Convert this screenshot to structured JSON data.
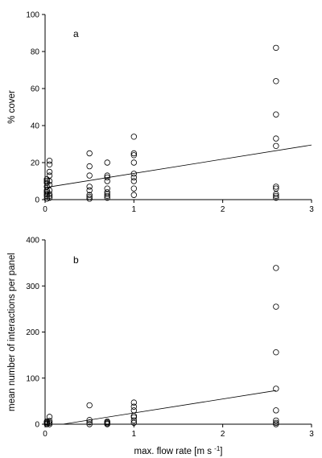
{
  "chart_data": [
    {
      "type": "scatter",
      "panel_label": "a",
      "xlabel": "",
      "ylabel": "% cover",
      "xlim": [
        0,
        3
      ],
      "ylim": [
        0,
        100
      ],
      "xticks": [
        "0",
        "1",
        "2",
        "3"
      ],
      "yticks": [
        "0",
        "20",
        "40",
        "60",
        "80",
        "100"
      ],
      "points": [
        [
          0.02,
          0.5
        ],
        [
          0.02,
          2
        ],
        [
          0.02,
          3
        ],
        [
          0.02,
          4
        ],
        [
          0.02,
          5
        ],
        [
          0.02,
          7
        ],
        [
          0.02,
          9
        ],
        [
          0.02,
          10
        ],
        [
          0.02,
          11
        ],
        [
          0.05,
          1
        ],
        [
          0.05,
          2
        ],
        [
          0.05,
          3
        ],
        [
          0.05,
          5
        ],
        [
          0.05,
          8
        ],
        [
          0.05,
          10
        ],
        [
          0.05,
          13
        ],
        [
          0.05,
          15
        ],
        [
          0.05,
          19
        ],
        [
          0.05,
          21
        ],
        [
          0.5,
          0.5
        ],
        [
          0.5,
          1.5
        ],
        [
          0.5,
          2.5
        ],
        [
          0.5,
          5
        ],
        [
          0.5,
          7
        ],
        [
          0.5,
          13
        ],
        [
          0.5,
          18
        ],
        [
          0.5,
          25
        ],
        [
          0.7,
          1
        ],
        [
          0.7,
          2
        ],
        [
          0.7,
          3
        ],
        [
          0.7,
          4
        ],
        [
          0.7,
          6
        ],
        [
          0.7,
          10
        ],
        [
          0.7,
          12
        ],
        [
          0.7,
          13
        ],
        [
          0.7,
          20
        ],
        [
          1.0,
          2.5
        ],
        [
          1.0,
          6
        ],
        [
          1.0,
          10
        ],
        [
          1.0,
          12
        ],
        [
          1.0,
          14
        ],
        [
          1.0,
          20
        ],
        [
          1.0,
          24
        ],
        [
          1.0,
          25
        ],
        [
          1.0,
          34
        ],
        [
          2.6,
          1
        ],
        [
          2.6,
          2
        ],
        [
          2.6,
          3
        ],
        [
          2.6,
          6
        ],
        [
          2.6,
          7
        ],
        [
          2.6,
          29
        ],
        [
          2.6,
          33
        ],
        [
          2.6,
          46
        ],
        [
          2.6,
          64
        ],
        [
          2.6,
          82
        ]
      ],
      "trendline": [
        [
          0,
          6.5
        ],
        [
          3,
          29.5
        ]
      ]
    },
    {
      "type": "scatter",
      "panel_label": "b",
      "xlabel": "max. flow rate [m s",
      "xlabel_sup": "-1",
      "xlabel_end": "]",
      "ylabel": "mean number of interactions per panel",
      "xlim": [
        0,
        3
      ],
      "ylim": [
        0,
        400
      ],
      "xticks": [
        "0",
        "1",
        "2",
        "3"
      ],
      "yticks": [
        "0",
        "100",
        "200",
        "300",
        "400"
      ],
      "points": [
        [
          0.02,
          0
        ],
        [
          0.02,
          2
        ],
        [
          0.02,
          4
        ],
        [
          0.02,
          6
        ],
        [
          0.05,
          0
        ],
        [
          0.05,
          3
        ],
        [
          0.05,
          7
        ],
        [
          0.05,
          16
        ],
        [
          0.5,
          0
        ],
        [
          0.5,
          4
        ],
        [
          0.5,
          9
        ],
        [
          0.5,
          41
        ],
        [
          0.7,
          0
        ],
        [
          0.7,
          2
        ],
        [
          0.7,
          4
        ],
        [
          0.7,
          6
        ],
        [
          1.0,
          3
        ],
        [
          1.0,
          8
        ],
        [
          1.0,
          15
        ],
        [
          1.0,
          18
        ],
        [
          1.0,
          30
        ],
        [
          1.0,
          38
        ],
        [
          1.0,
          47
        ],
        [
          2.6,
          0
        ],
        [
          2.6,
          3
        ],
        [
          2.6,
          8
        ],
        [
          2.6,
          30
        ],
        [
          2.6,
          77
        ],
        [
          2.6,
          156
        ],
        [
          2.6,
          255
        ],
        [
          2.6,
          339
        ]
      ],
      "trendline": [
        [
          0.2,
          0
        ],
        [
          2.6,
          73
        ]
      ]
    }
  ]
}
